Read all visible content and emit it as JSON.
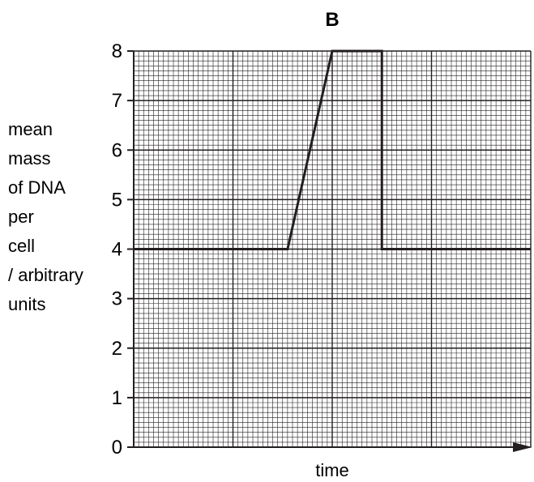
{
  "chart_data": {
    "type": "line",
    "title": "B",
    "xlabel": "time",
    "ylabel_lines": [
      "mean",
      "mass",
      "of DNA",
      "per",
      "cell",
      "/ arbitrary",
      "units"
    ],
    "ylim": [
      0,
      8
    ],
    "xlim": [
      0,
      8
    ],
    "yticks": [
      "0",
      "1",
      "2",
      "3",
      "4",
      "5",
      "6",
      "7",
      "8"
    ],
    "grid": true,
    "series": [
      {
        "x": [
          0,
          3.1,
          4.0,
          5.0,
          5.0,
          8.0
        ],
        "y": [
          4,
          4,
          8,
          8,
          4,
          4
        ]
      }
    ],
    "colors": {
      "line": "#231f20",
      "grid": "#231f20"
    }
  }
}
